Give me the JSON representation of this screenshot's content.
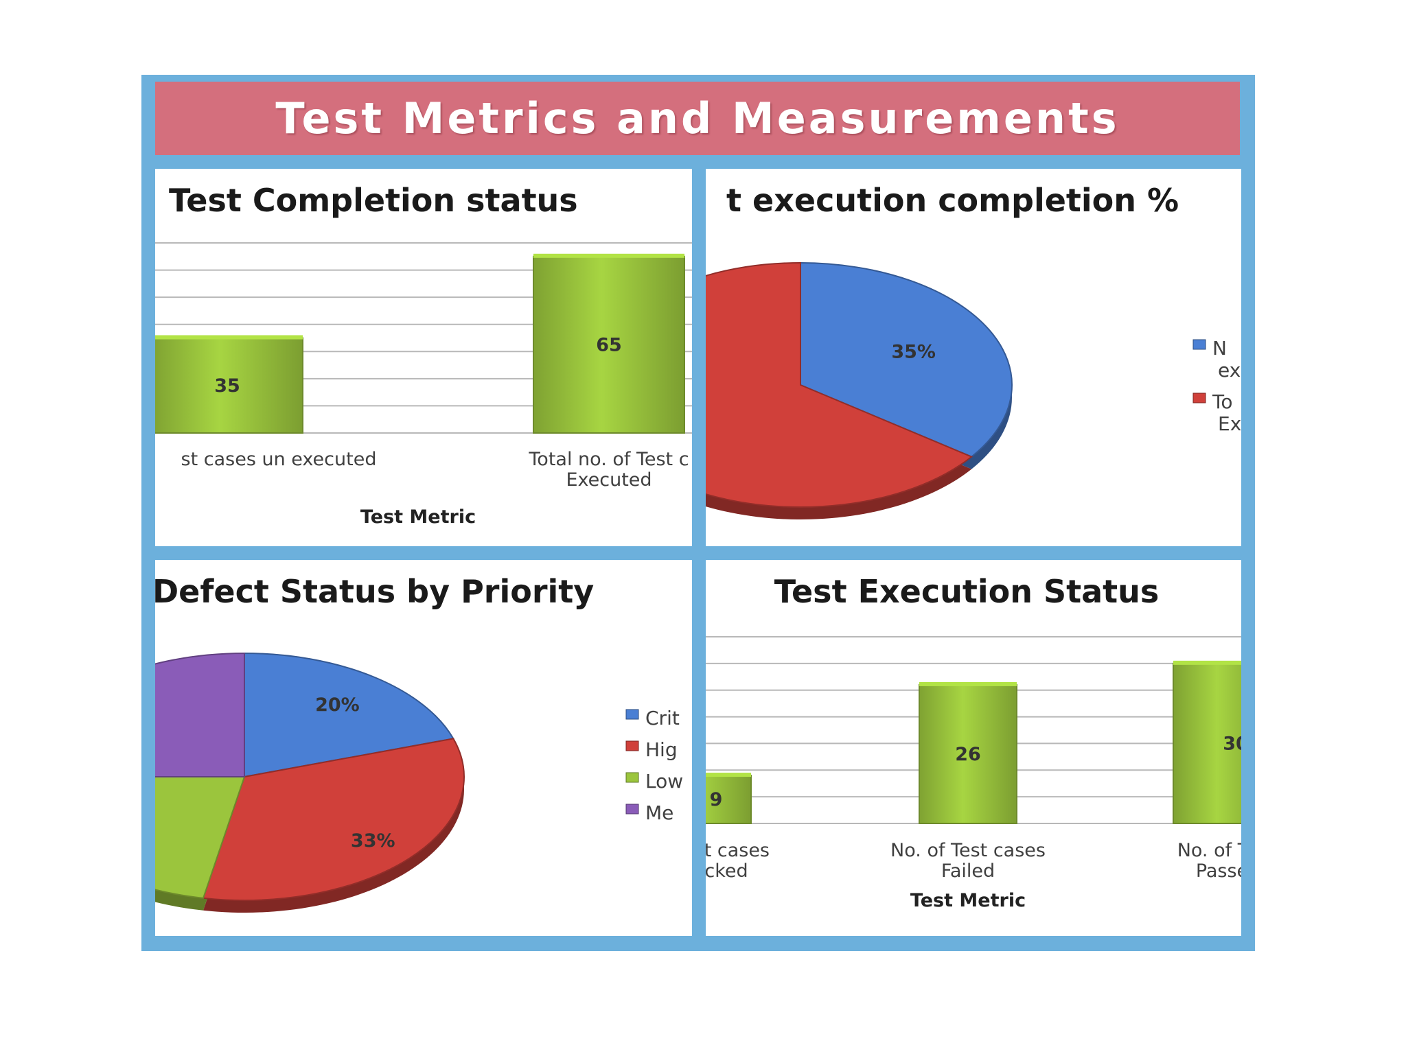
{
  "title": "Test Metrics and Measurements",
  "colors": {
    "frame": "#6cb0dc",
    "banner": "#d46f7d",
    "bar": "#9bc53d",
    "blue": "#4a7fd4",
    "red": "#d0403a",
    "green": "#9bc53d",
    "purple": "#8a5cb8"
  },
  "chart_data": [
    {
      "type": "bar",
      "title": "Test Completion status",
      "xlabel": "Test Metric",
      "categories": [
        "Total no. of Test cases un executed",
        "Total no. of Test cases Executed"
      ],
      "category_lines": [
        [
          "st cases un executed"
        ],
        [
          "Total no. of Test c",
          "Executed"
        ]
      ],
      "values": [
        35,
        65
      ],
      "ylim": [
        0,
        70
      ],
      "grid": true
    },
    {
      "type": "pie",
      "title": "t execution completion %",
      "labels": [
        "No",
        "To"
      ],
      "legend_lines": [
        [
          "N",
          "ex"
        ],
        [
          "To",
          "Ex"
        ]
      ],
      "values": [
        35,
        65
      ],
      "data_labels": [
        "35%",
        ""
      ],
      "colors": [
        "#4a7fd4",
        "#d0403a"
      ],
      "legend": "right"
    },
    {
      "type": "pie",
      "title": "Defect Status by Priority",
      "labels": [
        "Crit",
        "Hig",
        "Low",
        "Me"
      ],
      "values": [
        20,
        33,
        22,
        25
      ],
      "data_labels": [
        "20%",
        "33%",
        "",
        "%"
      ],
      "colors": [
        "#4a7fd4",
        "#d0403a",
        "#9bc53d",
        "#8a5cb8"
      ],
      "legend": "right"
    },
    {
      "type": "bar",
      "title": "Test Execution Status",
      "xlabel": "Test Metric",
      "categories": [
        "No. of Test cases Blocked",
        "No. of Test cases Failed",
        "No. of Test cases Passed"
      ],
      "category_lines": [
        [
          "est cases",
          "cked"
        ],
        [
          "No. of Test cases",
          "Failed"
        ],
        [
          "No. of Tes",
          "Passe"
        ]
      ],
      "values": [
        9,
        26,
        30
      ],
      "data_labels": [
        "9",
        "26",
        "30"
      ],
      "ylim": [
        0,
        35
      ],
      "grid": true
    }
  ]
}
